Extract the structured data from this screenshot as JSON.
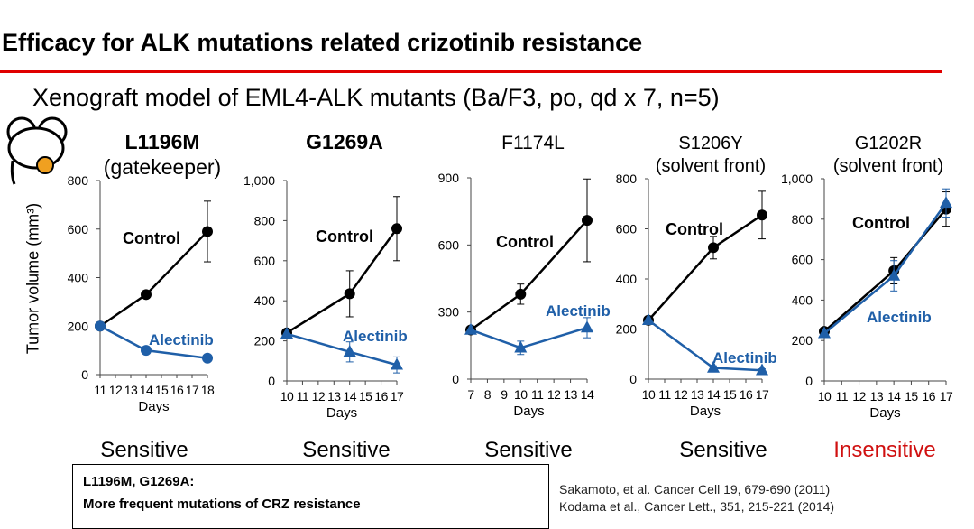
{
  "slide": {
    "title": "Efficacy for ALK mutations related crizotinib resistance",
    "subtitle": "Xenograft model of EML4-ALK mutants (Ba/F3, po, qd x 7, n=5)",
    "ylabel": "Tumor volume (mm³)",
    "note_line1": "L1196M, G1269A:",
    "note_line2": "More frequent mutations of CRZ resistance",
    "ref1": "Sakamoto, et al. Cancer Cell 19, 679-690 (2011)",
    "ref2": "Kodama et al., Cancer Lett., 351, 215-221 (2014)"
  },
  "colors": {
    "control": "#000000",
    "alectinib": "#1f5fa8",
    "rule": "#e00000",
    "insensitive": "#d01010"
  },
  "chart_data": [
    {
      "type": "line",
      "title": "L1196M",
      "subtitle": "(gatekeeper)",
      "title_bold": true,
      "result": "Sensitive",
      "xlabel": "Days",
      "x": [
        11,
        12,
        13,
        14,
        15,
        16,
        17,
        18
      ],
      "xtick_labels": [
        "11",
        "12",
        "13",
        "14",
        "15",
        "16",
        "17",
        "18"
      ],
      "ylim": [
        0,
        800
      ],
      "yticks": [
        0,
        200,
        400,
        600,
        800
      ],
      "ytick_labels": [
        "0",
        "200",
        "400",
        "600",
        "800"
      ],
      "series": [
        {
          "name": "Control",
          "marker": "circle",
          "x": [
            11,
            14,
            18
          ],
          "y": [
            200,
            330,
            590
          ],
          "err": [
            0,
            15,
            125
          ]
        },
        {
          "name": "Alectinib",
          "marker": "circle",
          "x": [
            11,
            14,
            18
          ],
          "y": [
            200,
            100,
            68
          ],
          "err": [
            0,
            10,
            8
          ]
        }
      ]
    },
    {
      "type": "line",
      "title": "G1269A",
      "subtitle": "",
      "title_bold": true,
      "result": "Sensitive",
      "xlabel": "Days",
      "x": [
        10,
        11,
        12,
        13,
        14,
        15,
        16,
        17
      ],
      "xtick_labels": [
        "10",
        "11",
        "12",
        "13",
        "14",
        "15",
        "16",
        "17"
      ],
      "ylim": [
        0,
        1000
      ],
      "yticks": [
        0,
        200,
        400,
        600,
        800,
        1000
      ],
      "ytick_labels": [
        "0",
        "200",
        "400",
        "600",
        "800",
        "1,000"
      ],
      "series": [
        {
          "name": "Control",
          "marker": "circle",
          "x": [
            10,
            14,
            17
          ],
          "y": [
            240,
            435,
            760
          ],
          "err": [
            0,
            115,
            160
          ]
        },
        {
          "name": "Alectinib",
          "marker": "triangle",
          "x": [
            10,
            14,
            17
          ],
          "y": [
            235,
            145,
            80
          ],
          "err": [
            0,
            50,
            40
          ]
        }
      ]
    },
    {
      "type": "line",
      "title": "F1174L",
      "subtitle": "",
      "title_bold": false,
      "result": "Sensitive",
      "xlabel": "Days",
      "x": [
        7,
        8,
        9,
        10,
        11,
        12,
        13,
        14
      ],
      "xtick_labels": [
        "7",
        "8",
        "9",
        "10",
        "11",
        "12",
        "13",
        "14"
      ],
      "ylim": [
        0,
        900
      ],
      "yticks": [
        0,
        300,
        600,
        900
      ],
      "ytick_labels": [
        "0",
        "300",
        "600",
        "900"
      ],
      "series": [
        {
          "name": "Control",
          "marker": "circle",
          "x": [
            7,
            10,
            14
          ],
          "y": [
            220,
            380,
            710
          ],
          "err": [
            0,
            45,
            185
          ]
        },
        {
          "name": "Alectinib",
          "marker": "triangle",
          "x": [
            7,
            10,
            14
          ],
          "y": [
            220,
            140,
            230
          ],
          "err": [
            0,
            30,
            45
          ]
        }
      ]
    },
    {
      "type": "line",
      "title": "S1206Y",
      "subtitle": "(solvent front)",
      "title_bold": false,
      "result": "Sensitive",
      "xlabel": "Days",
      "x": [
        10,
        11,
        12,
        13,
        14,
        15,
        16,
        17
      ],
      "xtick_labels": [
        "10",
        "11",
        "12",
        "13",
        "14",
        "15",
        "16",
        "17"
      ],
      "ylim": [
        0,
        800
      ],
      "yticks": [
        0,
        200,
        400,
        600,
        800
      ],
      "ytick_labels": [
        "0",
        "200",
        "400",
        "600",
        "800"
      ],
      "series": [
        {
          "name": "Control",
          "marker": "circle",
          "x": [
            10,
            14,
            17
          ],
          "y": [
            235,
            525,
            655
          ],
          "err": [
            0,
            45,
            95
          ]
        },
        {
          "name": "Alectinib",
          "marker": "triangle",
          "x": [
            10,
            14,
            17
          ],
          "y": [
            235,
            45,
            35
          ],
          "err": [
            0,
            8,
            6
          ]
        }
      ]
    },
    {
      "type": "line",
      "title": "G1202R",
      "subtitle": "(solvent front)",
      "title_bold": false,
      "result": "Insensitive",
      "xlabel": "Days",
      "x": [
        10,
        11,
        12,
        13,
        14,
        15,
        16,
        17
      ],
      "xtick_labels": [
        "10",
        "11",
        "12",
        "13",
        "14",
        "15",
        "16",
        "17"
      ],
      "ylim": [
        0,
        1000
      ],
      "yticks": [
        0,
        200,
        400,
        600,
        800,
        1000
      ],
      "ytick_labels": [
        "0",
        "200",
        "400",
        "600",
        "800",
        "1,000"
      ],
      "series": [
        {
          "name": "Control",
          "marker": "circle",
          "x": [
            10,
            14,
            17
          ],
          "y": [
            245,
            545,
            850
          ],
          "err": [
            0,
            65,
            85
          ]
        },
        {
          "name": "Alectinib",
          "marker": "triangle",
          "x": [
            10,
            14,
            17
          ],
          "y": [
            235,
            520,
            880
          ],
          "err": [
            0,
            75,
            70
          ]
        }
      ]
    }
  ]
}
